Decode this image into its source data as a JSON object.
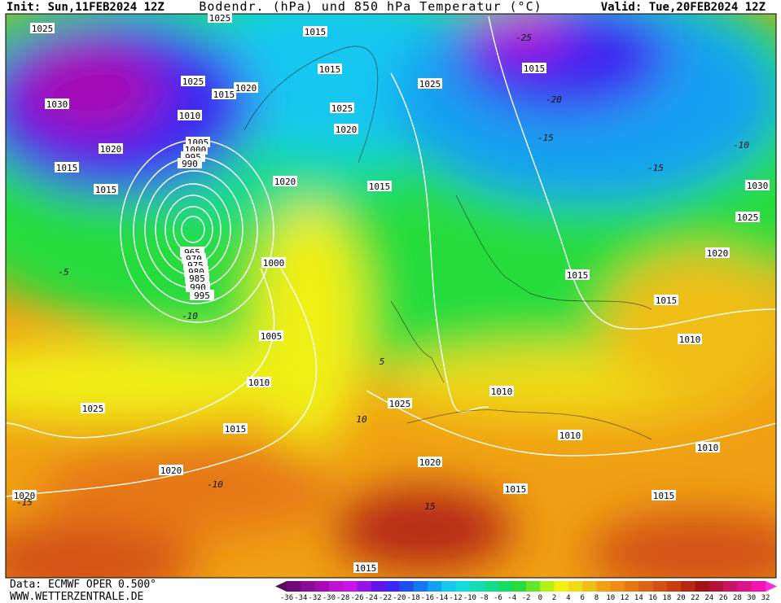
{
  "header": {
    "init": "Init: Sun,11FEB2024 12Z",
    "title": "Bodendr. (hPa) und 850 hPa Temperatur (°C)",
    "valid": "Valid: Tue,20FEB2024 12Z"
  },
  "map": {
    "isobar_labels": [
      1025,
      1025,
      1030,
      1020,
      1015,
      1015,
      1015,
      1020,
      1010,
      1005,
      1000,
      995,
      990,
      965,
      970,
      975,
      980,
      985,
      990,
      995,
      1000,
      1005,
      1010,
      1015,
      1020,
      1020,
      1025,
      1025,
      1020,
      1015,
      1015,
      1010,
      1010,
      1010,
      1010,
      1015,
      1020,
      1025,
      1030,
      1015,
      1015,
      1020,
      1020,
      1025,
      1015,
      1015,
      1015,
      1025,
      1015,
      1025
    ],
    "temperature_labels": [
      -10,
      -5,
      5,
      10,
      -10,
      -15,
      15,
      -15,
      -15,
      -10,
      -25,
      -20
    ]
  },
  "footer": {
    "data": "Data: ECMWF OPER 0.500°",
    "site": "WWW.WETTERZENTRALE.DE"
  },
  "colorbar": {
    "ticks": [
      -36,
      -34,
      -32,
      -30,
      -28,
      -26,
      -24,
      -22,
      -20,
      -18,
      -16,
      -14,
      -12,
      -10,
      -8,
      -6,
      -4,
      -2,
      0,
      2,
      4,
      6,
      8,
      10,
      12,
      14,
      16,
      18,
      20,
      22,
      24,
      26,
      28,
      30,
      32
    ],
    "colors": [
      "#5a0a5a",
      "#6e0a78",
      "#8c0a96",
      "#a50ab4",
      "#be14d2",
      "#c814e6",
      "#9614e6",
      "#6414e6",
      "#3c28f0",
      "#1e50f0",
      "#1478f0",
      "#14a0f0",
      "#14c8f0",
      "#14dcdc",
      "#14dcb4",
      "#14dc8c",
      "#14dc64",
      "#28dc3c",
      "#64e628",
      "#b4f014",
      "#f0f014",
      "#f0dc14",
      "#f0be14",
      "#f0a014",
      "#f08c14",
      "#e67814",
      "#dc6414",
      "#d25014",
      "#c83c14",
      "#b42814",
      "#a01414",
      "#b4143c",
      "#c81464",
      "#dc148c",
      "#f014b4",
      "#ff28dc"
    ]
  }
}
